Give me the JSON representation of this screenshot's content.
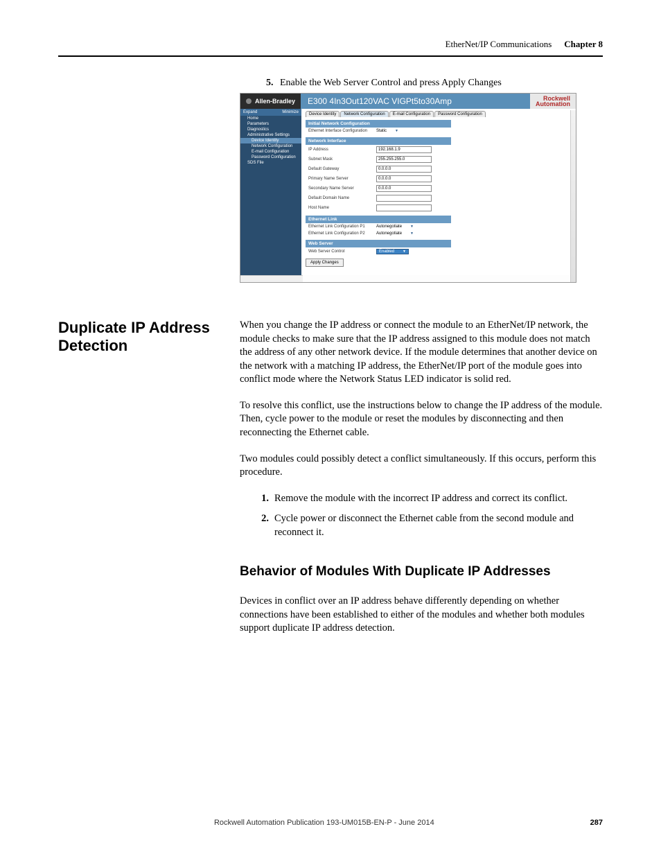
{
  "header": {
    "title": "EtherNet/IP Communications",
    "chapter": "Chapter 8"
  },
  "step": {
    "number": "5.",
    "text": "Enable the Web Server Control and press Apply Changes"
  },
  "screenshot": {
    "brand": "Allen-Bradley",
    "title": "E300 4In3Out120VAC VIGPt5to30Amp",
    "logo_line1": "Rockwell",
    "logo_line2": "Automation",
    "sidebar": {
      "expand": "Expand",
      "minimize": "Minimize",
      "items": [
        {
          "label": "Home",
          "lvl": 1
        },
        {
          "label": "Parameters",
          "lvl": 1
        },
        {
          "label": "Diagnostics",
          "lvl": 1
        },
        {
          "label": "Administrative Settings",
          "lvl": 1
        },
        {
          "label": "Device Identity",
          "lvl": 2,
          "sel": true
        },
        {
          "label": "Network Configuration",
          "lvl": 2
        },
        {
          "label": "E-mail Configuration",
          "lvl": 2
        },
        {
          "label": "Password Configuration",
          "lvl": 2
        },
        {
          "label": "SDS File",
          "lvl": 1
        }
      ]
    },
    "tabs": [
      "Device Identity",
      "Network Configuration",
      "E-mail Configuration",
      "Password Configuration"
    ],
    "active_tab": 1,
    "sections": {
      "initial": {
        "header": "Initial Network Configuration",
        "row_label": "Ethernet Interface Configuration",
        "row_value": "Static"
      },
      "network": {
        "header": "Network Interface",
        "rows": [
          {
            "label": "IP Address",
            "value": "192.168.1.9"
          },
          {
            "label": "Subnet Mask",
            "value": "255.255.255.0"
          },
          {
            "label": "Default Gateway",
            "value": "0.0.0.0"
          },
          {
            "label": "Primary Name Server",
            "value": "0.0.0.0"
          },
          {
            "label": "Secondary Name Server",
            "value": "0.0.0.0"
          },
          {
            "label": "Default Domain Name",
            "value": ""
          },
          {
            "label": "Host Name",
            "value": ""
          }
        ]
      },
      "ethernet": {
        "header": "Ethernet Link",
        "rows": [
          {
            "label": "Ethernet Link Configuration P1",
            "value": "Autonegotiate"
          },
          {
            "label": "Ethernet Link Configuration P2",
            "value": "Autonegotiate"
          }
        ]
      },
      "web": {
        "header": "Web Server",
        "row_label": "Web Server Control",
        "row_value": "Enabled"
      },
      "apply": "Apply Changes"
    }
  },
  "section": {
    "heading": "Duplicate IP Address Detection",
    "p1": "When you change the IP address or connect the module to an EtherNet/IP network, the module checks to make sure that the IP address assigned to this module does not match the address of any other network device. If the module determines that another device on the network with a matching IP address, the EtherNet/IP port of the module goes into conflict mode where the Network Status LED indicator is solid red.",
    "p2": "To resolve this conflict, use the instructions below to change the IP address of the module. Then, cycle power to the module or reset the modules by disconnecting and then reconnecting the Ethernet cable.",
    "p3": "Two modules could possibly detect a conflict simultaneously. If this occurs, perform this procedure.",
    "ol": [
      "Remove the module with the incorrect IP address and correct its conflict.",
      "Cycle power or disconnect the Ethernet cable from the second module and reconnect it."
    ],
    "subheading": "Behavior of Modules With Duplicate IP Addresses",
    "p4": "Devices in conflict over an IP address behave differently depending on whether connections have been established to either of the modules and whether both modules support duplicate IP address detection."
  },
  "footer": {
    "publication": "Rockwell Automation Publication 193-UM015B-EN-P - June 2014",
    "page": "287"
  }
}
